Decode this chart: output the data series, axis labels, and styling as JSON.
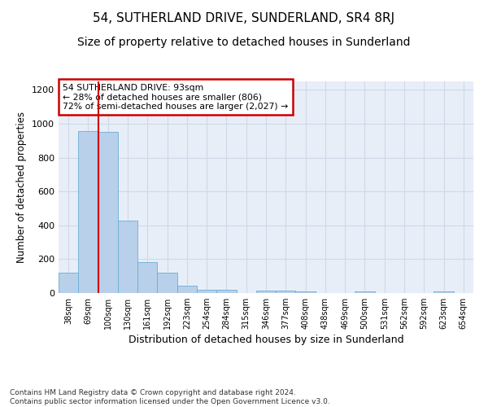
{
  "title": "54, SUTHERLAND DRIVE, SUNDERLAND, SR4 8RJ",
  "subtitle": "Size of property relative to detached houses in Sunderland",
  "xlabel": "Distribution of detached houses by size in Sunderland",
  "ylabel": "Number of detached properties",
  "categories": [
    "38sqm",
    "69sqm",
    "100sqm",
    "130sqm",
    "161sqm",
    "192sqm",
    "223sqm",
    "254sqm",
    "284sqm",
    "315sqm",
    "346sqm",
    "377sqm",
    "408sqm",
    "438sqm",
    "469sqm",
    "500sqm",
    "531sqm",
    "562sqm",
    "592sqm",
    "623sqm",
    "654sqm"
  ],
  "values": [
    120,
    955,
    950,
    430,
    185,
    120,
    45,
    20,
    20,
    0,
    15,
    15,
    10,
    0,
    0,
    10,
    0,
    0,
    0,
    10,
    0
  ],
  "bar_color": "#b8d0ea",
  "bar_edge_color": "#6aaed6",
  "grid_color": "#d0d8e8",
  "background_color": "#e8eef8",
  "annotation_text": "54 SUTHERLAND DRIVE: 93sqm\n← 28% of detached houses are smaller (806)\n72% of semi-detached houses are larger (2,027) →",
  "annotation_box_color": "#ffffff",
  "annotation_box_edge": "#cc0000",
  "ylim": [
    0,
    1250
  ],
  "yticks": [
    0,
    200,
    400,
    600,
    800,
    1000,
    1200
  ],
  "footer": "Contains HM Land Registry data © Crown copyright and database right 2024.\nContains public sector information licensed under the Open Government Licence v3.0.",
  "title_fontsize": 11,
  "subtitle_fontsize": 10,
  "ylabel_fontsize": 8.5,
  "xlabel_fontsize": 9
}
